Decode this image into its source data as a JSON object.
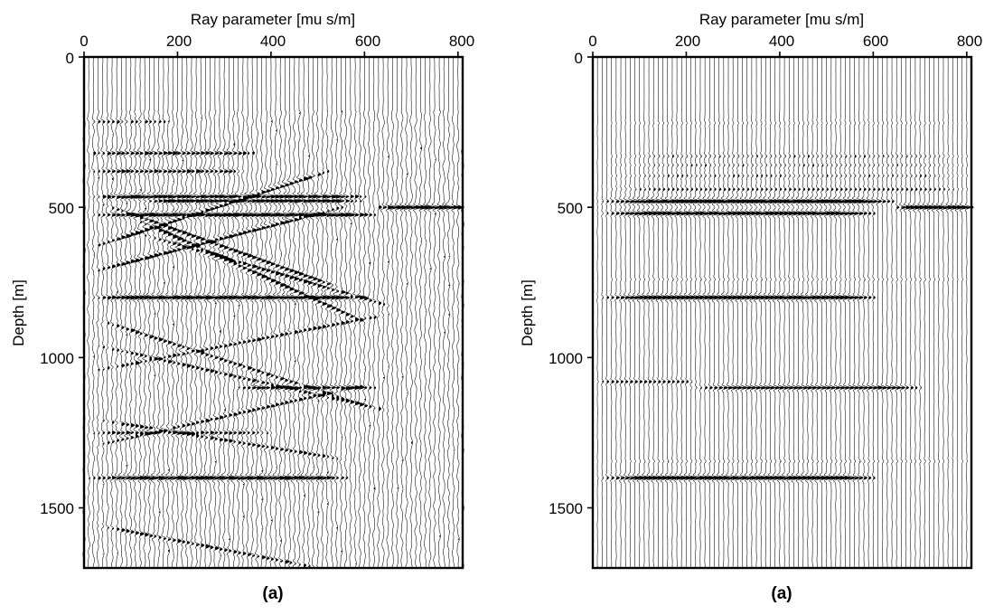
{
  "chart_data": [
    {
      "type": "wiggle",
      "panel_label": "(a)",
      "xlabel": "Ray parameter [mu s/m]",
      "ylabel": "Depth [m]",
      "xlim": [
        0,
        810
      ],
      "ylim": [
        1700,
        0
      ],
      "x_ticks": [
        0,
        200,
        400,
        600,
        800
      ],
      "y_ticks": [
        0,
        500,
        1000,
        1500
      ],
      "trace_spacing": 10,
      "noise_level": 0.55,
      "events": [
        {
          "depth": 215,
          "p_start": 0,
          "p_end": 180,
          "slope": 0,
          "amp": 0.35
        },
        {
          "depth": 320,
          "p_start": 0,
          "p_end": 360,
          "slope": 0,
          "amp": 0.6
        },
        {
          "depth": 380,
          "p_start": 0,
          "p_end": 340,
          "slope": 0,
          "amp": 0.55
        },
        {
          "depth": 465,
          "p_start": 0,
          "p_end": 600,
          "slope": 0,
          "amp": 1.0
        },
        {
          "depth": 478,
          "p_start": 100,
          "p_end": 590,
          "slope": 0,
          "amp": 1.0
        },
        {
          "depth": 500,
          "p_start": 620,
          "p_end": 810,
          "slope": 0,
          "amp": 1.0
        },
        {
          "depth": 525,
          "p_start": 0,
          "p_end": 620,
          "slope": 0,
          "amp": 0.95
        },
        {
          "depth": 800,
          "p_start": 0,
          "p_end": 600,
          "slope": 0,
          "amp": 1.0
        },
        {
          "depth": 1400,
          "p_start": 0,
          "p_end": 560,
          "slope": 0,
          "amp": 1.0
        },
        {
          "depth": 1100,
          "p_start": 320,
          "p_end": 620,
          "slope": 0,
          "amp": 0.7
        },
        {
          "depth": 480,
          "p_start": 20,
          "p_end": 560,
          "slope": 0.55,
          "amp": 0.7
        },
        {
          "depth": 520,
          "p_start": 80,
          "p_end": 600,
          "slope": 0.7,
          "amp": 0.7
        },
        {
          "depth": 640,
          "p_start": 0,
          "p_end": 520,
          "slope": -0.5,
          "amp": 0.7
        },
        {
          "depth": 720,
          "p_start": 0,
          "p_end": 560,
          "slope": -0.4,
          "amp": 0.65
        },
        {
          "depth": 580,
          "p_start": 100,
          "p_end": 650,
          "slope": 0.45,
          "amp": 0.6
        },
        {
          "depth": 860,
          "p_start": 0,
          "p_end": 600,
          "slope": 0.5,
          "amp": 0.5
        },
        {
          "depth": 950,
          "p_start": 0,
          "p_end": 650,
          "slope": 0.35,
          "amp": 0.45
        },
        {
          "depth": 1050,
          "p_start": 0,
          "p_end": 650,
          "slope": -0.3,
          "amp": 0.45
        },
        {
          "depth": 1200,
          "p_start": 0,
          "p_end": 560,
          "slope": 0.25,
          "amp": 0.45
        },
        {
          "depth": 1250,
          "p_start": 0,
          "p_end": 400,
          "slope": 0,
          "amp": 0.5
        },
        {
          "depth": 1300,
          "p_start": 0,
          "p_end": 600,
          "slope": -0.35,
          "amp": 0.5
        },
        {
          "depth": 1550,
          "p_start": 0,
          "p_end": 500,
          "slope": 0.3,
          "amp": 0.45
        }
      ]
    },
    {
      "type": "wiggle",
      "panel_label": "(a)",
      "xlabel": "Ray parameter [mu s/m]",
      "ylabel": "Depth [m]",
      "xlim": [
        0,
        810
      ],
      "ylim": [
        1700,
        0
      ],
      "x_ticks": [
        0,
        200,
        400,
        600,
        800
      ],
      "y_ticks": [
        0,
        500,
        1000,
        1500
      ],
      "trace_spacing": 10,
      "noise_level": 0.12,
      "events": [
        {
          "depth": 220,
          "p_start": 0,
          "p_end": 810,
          "slope": 0,
          "amp": 0.12
        },
        {
          "depth": 330,
          "p_start": 0,
          "p_end": 810,
          "slope": 0,
          "amp": 0.22
        },
        {
          "depth": 360,
          "p_start": 0,
          "p_end": 810,
          "slope": 0,
          "amp": 0.2
        },
        {
          "depth": 395,
          "p_start": 0,
          "p_end": 810,
          "slope": 0,
          "amp": 0.22
        },
        {
          "depth": 440,
          "p_start": 0,
          "p_end": 810,
          "slope": 0,
          "amp": 0.3
        },
        {
          "depth": 480,
          "p_start": 0,
          "p_end": 640,
          "slope": 0,
          "amp": 1.0
        },
        {
          "depth": 500,
          "p_start": 640,
          "p_end": 810,
          "slope": 0,
          "amp": 1.0
        },
        {
          "depth": 520,
          "p_start": 0,
          "p_end": 600,
          "slope": 0,
          "amp": 0.95
        },
        {
          "depth": 740,
          "p_start": 0,
          "p_end": 810,
          "slope": 0,
          "amp": 0.15
        },
        {
          "depth": 800,
          "p_start": 0,
          "p_end": 600,
          "slope": 0,
          "amp": 1.0
        },
        {
          "depth": 1080,
          "p_start": 0,
          "p_end": 220,
          "slope": 0,
          "amp": 0.4
        },
        {
          "depth": 1100,
          "p_start": 200,
          "p_end": 700,
          "slope": 0,
          "amp": 0.7
        },
        {
          "depth": 1400,
          "p_start": 0,
          "p_end": 600,
          "slope": 0,
          "amp": 1.0
        },
        {
          "depth": 1345,
          "p_start": 0,
          "p_end": 810,
          "slope": 0,
          "amp": 0.15
        }
      ]
    }
  ]
}
